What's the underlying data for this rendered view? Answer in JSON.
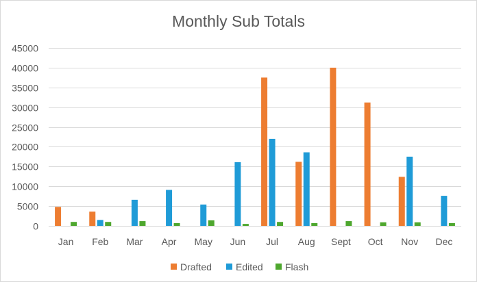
{
  "chart_data": {
    "type": "bar",
    "title": "Monthly Sub Totals",
    "xlabel": "",
    "ylabel": "",
    "categories": [
      "Jan",
      "Feb",
      "Mar",
      "Apr",
      "May",
      "Jun",
      "Jul",
      "Aug",
      "Sept",
      "Oct",
      "Nov",
      "Dec"
    ],
    "series": [
      {
        "name": "Drafted",
        "color": "#ED7D31",
        "values": [
          4800,
          3600,
          0,
          0,
          0,
          0,
          37500,
          16200,
          40000,
          31200,
          12400,
          0
        ]
      },
      {
        "name": "Edited",
        "color": "#1F9BD7",
        "values": [
          0,
          1500,
          6600,
          9100,
          5400,
          16100,
          22000,
          18600,
          0,
          0,
          17500,
          7600
        ]
      },
      {
        "name": "Flash",
        "color": "#4EA72E",
        "values": [
          1000,
          1000,
          1200,
          700,
          1400,
          500,
          1000,
          700,
          1200,
          900,
          900,
          700
        ]
      }
    ],
    "ylim": [
      0,
      45000
    ],
    "yticks": [
      0,
      5000,
      10000,
      15000,
      20000,
      25000,
      30000,
      35000,
      40000,
      45000
    ],
    "grid": true,
    "legend": "bottom"
  }
}
